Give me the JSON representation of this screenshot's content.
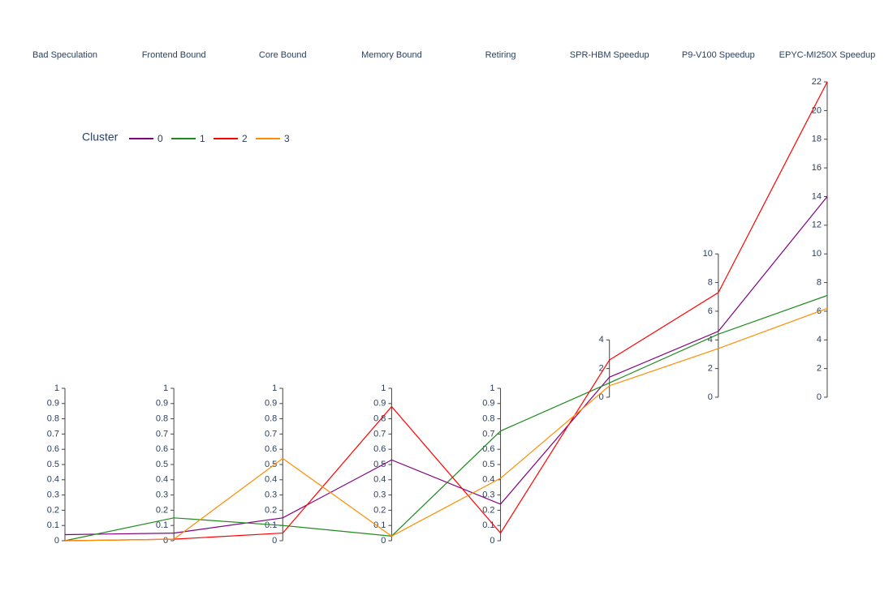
{
  "chart_data": {
    "type": "parallel",
    "legend_title": "Cluster",
    "dimensions": [
      {
        "label": "Bad Speculation",
        "range": [
          0,
          1
        ],
        "ticks": [
          0,
          0.1,
          0.2,
          0.3,
          0.4,
          0.5,
          0.6,
          0.7,
          0.8,
          0.9,
          1
        ]
      },
      {
        "label": "Frontend Bound",
        "range": [
          0,
          1
        ],
        "ticks": [
          0,
          0.1,
          0.2,
          0.3,
          0.4,
          0.5,
          0.6,
          0.7,
          0.8,
          0.9,
          1
        ]
      },
      {
        "label": "Core Bound",
        "range": [
          0,
          1
        ],
        "ticks": [
          0,
          0.1,
          0.2,
          0.3,
          0.4,
          0.5,
          0.6,
          0.7,
          0.8,
          0.9,
          1
        ]
      },
      {
        "label": "Memory Bound",
        "range": [
          0,
          1
        ],
        "ticks": [
          0,
          0.1,
          0.2,
          0.3,
          0.4,
          0.5,
          0.6,
          0.7,
          0.8,
          0.9,
          1
        ]
      },
      {
        "label": "Retiring",
        "range": [
          0,
          1
        ],
        "ticks": [
          0,
          0.1,
          0.2,
          0.3,
          0.4,
          0.5,
          0.6,
          0.7,
          0.8,
          0.9,
          1
        ]
      },
      {
        "label": "SPR-HBM Speedup",
        "range": [
          0,
          4
        ],
        "ticks": [
          0,
          2,
          4
        ]
      },
      {
        "label": "P9-V100 Speedup",
        "range": [
          0,
          10
        ],
        "ticks": [
          0,
          2,
          4,
          6,
          8,
          10
        ]
      },
      {
        "label": "EPYC-MI250X Speedup",
        "range": [
          0,
          22
        ],
        "ticks": [
          0,
          2,
          4,
          6,
          8,
          10,
          12,
          14,
          16,
          18,
          20,
          22
        ]
      }
    ],
    "series": [
      {
        "name": "0",
        "color": "#800080",
        "values": [
          0.04,
          0.05,
          0.15,
          0.53,
          0.24,
          1.4,
          4.6,
          14
        ]
      },
      {
        "name": "1",
        "color": "#1e8a1e",
        "values": [
          0.0,
          0.15,
          0.1,
          0.03,
          0.72,
          1.0,
          4.4,
          7.1
        ]
      },
      {
        "name": "2",
        "color": "#ff0000",
        "values": [
          0.0,
          0.01,
          0.05,
          0.88,
          0.05,
          2.6,
          7.3,
          22
        ]
      },
      {
        "name": "3",
        "color": "#ff8c00",
        "values": [
          0.0,
          0.01,
          0.54,
          0.03,
          0.41,
          0.8,
          3.4,
          6.2
        ]
      }
    ]
  }
}
